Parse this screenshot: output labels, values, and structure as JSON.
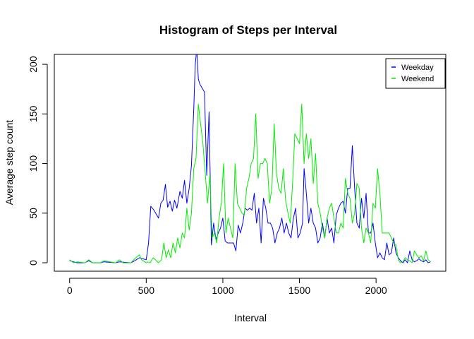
{
  "chart_data": {
    "type": "line",
    "title": "Histogram of Steps per Interval",
    "xlabel": "Interval",
    "ylabel": "Average step count",
    "xlim": [
      -100,
      2455
    ],
    "ylim": [
      -8.5,
      210
    ],
    "x_ticks": [
      0,
      500,
      1000,
      1500,
      2000
    ],
    "y_ticks": [
      0,
      50,
      100,
      150,
      200
    ],
    "grid": false,
    "legend": "top-right",
    "series": [
      {
        "name": "Weekday",
        "color": "#0000ff",
        "points": [
          [
            0,
            2
          ],
          [
            25,
            1
          ],
          [
            50,
            0
          ],
          [
            100,
            0
          ],
          [
            125,
            2
          ],
          [
            150,
            0
          ],
          [
            200,
            0
          ],
          [
            225,
            1
          ],
          [
            300,
            0
          ],
          [
            325,
            1
          ],
          [
            400,
            0
          ],
          [
            425,
            2
          ],
          [
            455,
            5
          ],
          [
            500,
            3
          ],
          [
            515,
            20
          ],
          [
            530,
            57
          ],
          [
            550,
            53
          ],
          [
            580,
            45
          ],
          [
            595,
            60
          ],
          [
            610,
            63
          ],
          [
            625,
            79
          ],
          [
            640,
            56
          ],
          [
            655,
            62
          ],
          [
            670,
            52
          ],
          [
            685,
            63
          ],
          [
            700,
            55
          ],
          [
            720,
            72
          ],
          [
            735,
            65
          ],
          [
            750,
            83
          ],
          [
            765,
            60
          ],
          [
            780,
            75
          ],
          [
            795,
            98
          ],
          [
            810,
            155
          ],
          [
            820,
            200
          ],
          [
            830,
            215
          ],
          [
            840,
            185
          ],
          [
            850,
            180
          ],
          [
            865,
            176
          ],
          [
            880,
            172
          ],
          [
            895,
            88
          ],
          [
            910,
            152
          ],
          [
            925,
            18
          ],
          [
            940,
            40
          ],
          [
            955,
            23
          ],
          [
            970,
            30
          ],
          [
            985,
            35
          ],
          [
            1000,
            45
          ],
          [
            1015,
            22
          ],
          [
            1030,
            20
          ],
          [
            1050,
            20
          ],
          [
            1070,
            20
          ],
          [
            1085,
            12
          ],
          [
            1100,
            38
          ],
          [
            1115,
            30
          ],
          [
            1130,
            40
          ],
          [
            1145,
            55
          ],
          [
            1160,
            53
          ],
          [
            1175,
            55
          ],
          [
            1190,
            53
          ],
          [
            1205,
            70
          ],
          [
            1220,
            40
          ],
          [
            1235,
            55
          ],
          [
            1250,
            20
          ],
          [
            1265,
            65
          ],
          [
            1280,
            55
          ],
          [
            1295,
            40
          ],
          [
            1310,
            40
          ],
          [
            1325,
            35
          ],
          [
            1340,
            20
          ],
          [
            1355,
            30
          ],
          [
            1370,
            35
          ],
          [
            1385,
            45
          ],
          [
            1400,
            30
          ],
          [
            1415,
            40
          ],
          [
            1430,
            30
          ],
          [
            1445,
            25
          ],
          [
            1460,
            45
          ],
          [
            1475,
            55
          ],
          [
            1490,
            25
          ],
          [
            1505,
            30
          ],
          [
            1520,
            40
          ],
          [
            1530,
            95
          ],
          [
            1545,
            70
          ],
          [
            1560,
            40
          ],
          [
            1575,
            55
          ],
          [
            1590,
            40
          ],
          [
            1605,
            35
          ],
          [
            1620,
            20
          ],
          [
            1635,
            25
          ],
          [
            1650,
            40
          ],
          [
            1665,
            25
          ],
          [
            1680,
            45
          ],
          [
            1695,
            30
          ],
          [
            1710,
            35
          ],
          [
            1725,
            20
          ],
          [
            1740,
            48
          ],
          [
            1755,
            55
          ],
          [
            1770,
            60
          ],
          [
            1785,
            62
          ],
          [
            1800,
            50
          ],
          [
            1815,
            75
          ],
          [
            1830,
            75
          ],
          [
            1845,
            118
          ],
          [
            1860,
            75
          ],
          [
            1875,
            40
          ],
          [
            1890,
            35
          ],
          [
            1905,
            65
          ],
          [
            1920,
            45
          ],
          [
            1935,
            70
          ],
          [
            1950,
            30
          ],
          [
            1965,
            30
          ],
          [
            1980,
            40
          ],
          [
            1995,
            20
          ],
          [
            2010,
            5
          ],
          [
            2025,
            10
          ],
          [
            2040,
            5
          ],
          [
            2055,
            3
          ],
          [
            2070,
            20
          ],
          [
            2085,
            8
          ],
          [
            2100,
            10
          ],
          [
            2115,
            25
          ],
          [
            2130,
            10
          ],
          [
            2145,
            5
          ],
          [
            2160,
            2
          ],
          [
            2175,
            0
          ],
          [
            2190,
            3
          ],
          [
            2205,
            0
          ],
          [
            2220,
            12
          ],
          [
            2235,
            3
          ],
          [
            2250,
            1
          ],
          [
            2265,
            2
          ],
          [
            2280,
            4
          ],
          [
            2295,
            2
          ],
          [
            2310,
            1
          ],
          [
            2325,
            3
          ],
          [
            2340,
            0
          ],
          [
            2355,
            1
          ]
        ]
      },
      {
        "name": "Weekend",
        "color": "#00ee00",
        "points": [
          [
            0,
            3
          ],
          [
            25,
            0
          ],
          [
            50,
            1
          ],
          [
            100,
            0
          ],
          [
            125,
            3
          ],
          [
            150,
            0
          ],
          [
            200,
            0
          ],
          [
            225,
            2
          ],
          [
            300,
            0
          ],
          [
            325,
            3
          ],
          [
            350,
            0
          ],
          [
            400,
            0
          ],
          [
            425,
            4
          ],
          [
            455,
            8
          ],
          [
            470,
            3
          ],
          [
            500,
            0
          ],
          [
            510,
            1
          ],
          [
            525,
            0
          ],
          [
            545,
            5
          ],
          [
            560,
            3
          ],
          [
            580,
            0
          ],
          [
            600,
            3
          ],
          [
            615,
            20
          ],
          [
            630,
            5
          ],
          [
            645,
            13
          ],
          [
            660,
            5
          ],
          [
            675,
            20
          ],
          [
            690,
            10
          ],
          [
            705,
            25
          ],
          [
            720,
            15
          ],
          [
            735,
            30
          ],
          [
            750,
            25
          ],
          [
            765,
            55
          ],
          [
            780,
            33
          ],
          [
            795,
            50
          ],
          [
            810,
            95
          ],
          [
            825,
            105
          ],
          [
            840,
            160
          ],
          [
            855,
            140
          ],
          [
            870,
            120
          ],
          [
            885,
            90
          ],
          [
            900,
            60
          ],
          [
            915,
            88
          ],
          [
            930,
            25
          ],
          [
            945,
            30
          ],
          [
            960,
            20
          ],
          [
            975,
            45
          ],
          [
            990,
            60
          ],
          [
            1005,
            100
          ],
          [
            1020,
            30
          ],
          [
            1035,
            45
          ],
          [
            1050,
            35
          ],
          [
            1065,
            25
          ],
          [
            1080,
            100
          ],
          [
            1095,
            60
          ],
          [
            1110,
            55
          ],
          [
            1125,
            50
          ],
          [
            1140,
            48
          ],
          [
            1155,
            75
          ],
          [
            1170,
            85
          ],
          [
            1185,
            100
          ],
          [
            1200,
            105
          ],
          [
            1215,
            150
          ],
          [
            1230,
            85
          ],
          [
            1245,
            100
          ],
          [
            1260,
            100
          ],
          [
            1275,
            105
          ],
          [
            1290,
            100
          ],
          [
            1305,
            60
          ],
          [
            1320,
            75
          ],
          [
            1335,
            140
          ],
          [
            1350,
            90
          ],
          [
            1365,
            75
          ],
          [
            1380,
            70
          ],
          [
            1395,
            95
          ],
          [
            1410,
            62
          ],
          [
            1425,
            50
          ],
          [
            1440,
            40
          ],
          [
            1455,
            80
          ],
          [
            1470,
            130
          ],
          [
            1485,
            125
          ],
          [
            1500,
            120
          ],
          [
            1515,
            160
          ],
          [
            1530,
            100
          ],
          [
            1545,
            130
          ],
          [
            1560,
            105
          ],
          [
            1575,
            125
          ],
          [
            1590,
            80
          ],
          [
            1605,
            110
          ],
          [
            1620,
            60
          ],
          [
            1635,
            50
          ],
          [
            1650,
            35
          ],
          [
            1665,
            25
          ],
          [
            1680,
            45
          ],
          [
            1695,
            55
          ],
          [
            1710,
            60
          ],
          [
            1725,
            45
          ],
          [
            1740,
            30
          ],
          [
            1755,
            30
          ],
          [
            1770,
            40
          ],
          [
            1785,
            35
          ],
          [
            1800,
            85
          ],
          [
            1815,
            70
          ],
          [
            1830,
            65
          ],
          [
            1845,
            40
          ],
          [
            1860,
            50
          ],
          [
            1875,
            80
          ],
          [
            1890,
            75
          ],
          [
            1905,
            35
          ],
          [
            1920,
            20
          ],
          [
            1935,
            35
          ],
          [
            1950,
            30
          ],
          [
            1965,
            20
          ],
          [
            1980,
            60
          ],
          [
            1995,
            55
          ],
          [
            2010,
            95
          ],
          [
            2025,
            70
          ],
          [
            2040,
            30
          ],
          [
            2055,
            30
          ],
          [
            2070,
            30
          ],
          [
            2085,
            30
          ],
          [
            2100,
            25
          ],
          [
            2115,
            20
          ],
          [
            2130,
            18
          ],
          [
            2145,
            3
          ],
          [
            2160,
            0
          ],
          [
            2175,
            1
          ],
          [
            2190,
            5
          ],
          [
            2205,
            3
          ],
          [
            2220,
            2
          ],
          [
            2235,
            0
          ],
          [
            2250,
            12
          ],
          [
            2265,
            8
          ],
          [
            2280,
            5
          ],
          [
            2295,
            7
          ],
          [
            2310,
            2
          ],
          [
            2325,
            12
          ],
          [
            2340,
            3
          ],
          [
            2355,
            1
          ]
        ]
      }
    ]
  }
}
